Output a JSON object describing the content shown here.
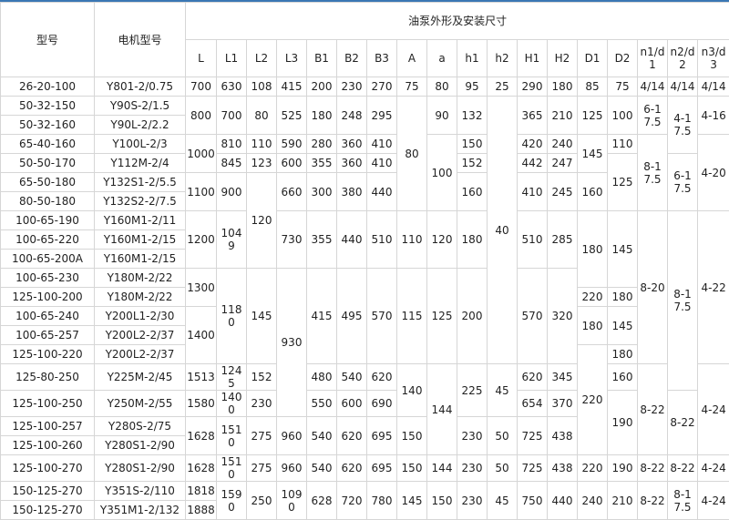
{
  "header": {
    "model_label": "型号",
    "motor_label": "电机型号",
    "group_label": "油泵外形及安装尺寸",
    "dims": [
      "L",
      "L1",
      "L2",
      "L3",
      "B1",
      "B2",
      "B3",
      "A",
      "a",
      "h1",
      "h2",
      "H1",
      "H2",
      "D1",
      "D2",
      "n1/d1",
      "n2/d2",
      "n3/d3"
    ]
  },
  "models": [
    "26-20-100",
    "50-32-150",
    "50-32-160",
    "65-40-160",
    "50-50-170",
    "65-50-180",
    "80-50-180",
    "100-65-190",
    "100-65-220",
    "100-65-200A",
    "100-65-230",
    "125-100-200",
    "100-65-240",
    "100-65-257",
    "125-100-220",
    "125-80-250",
    "125-100-250",
    "125-100-257",
    "125-100-260",
    "125-100-270",
    "150-125-270",
    "150-125-270"
  ],
  "motors": [
    "Y801-2/0.75",
    "Y90S-2/1.5",
    "Y90L-2/2.2",
    "Y100L-2/3",
    "Y112M-2/4",
    "Y132S1-2/5.5",
    "Y132S2-2/7.5",
    "Y160M1-2/11",
    "Y160M1-2/15",
    "Y160M1-2/15",
    "Y180M-2/22",
    "Y180M-2/22",
    "Y200L1-2/30",
    "Y200L2-2/37",
    "Y200L2-2/37",
    "Y225M-2/45",
    "Y250M-2/55",
    "Y280S-2/75",
    "Y280S1-2/90",
    "Y280S1-2/90",
    "Y351S-2/110",
    "Y351M1-2/132"
  ],
  "dim_columns": [
    [
      [
        "700",
        1
      ],
      [
        "800",
        2
      ],
      [
        "1000",
        2
      ],
      [
        "1100",
        2
      ],
      [
        "1200",
        3
      ],
      [
        "1300",
        2
      ],
      [
        "1400",
        3
      ],
      [
        "1513",
        1
      ],
      [
        "1580",
        1
      ],
      [
        "1628",
        2
      ],
      [
        "1628",
        1
      ],
      [
        "1818",
        1
      ],
      [
        "1888",
        1
      ]
    ],
    [
      [
        "630",
        1
      ],
      [
        "700",
        2
      ],
      [
        "810",
        1
      ],
      [
        "845",
        1
      ],
      [
        "900",
        2
      ],
      [
        "1049",
        3
      ],
      [
        "1180",
        5
      ],
      [
        "1245",
        1
      ],
      [
        "1400",
        1
      ],
      [
        "1510",
        2
      ],
      [
        "1510",
        1
      ],
      [
        "1590",
        2
      ]
    ],
    [
      [
        "108",
        1
      ],
      [
        "80",
        2
      ],
      [
        "110",
        1
      ],
      [
        "123",
        1
      ],
      [
        "120",
        5
      ],
      [
        "145",
        5
      ],
      [
        "152",
        1
      ],
      [
        "230",
        1
      ],
      [
        "275",
        2
      ],
      [
        "275",
        1
      ],
      [
        "250",
        2
      ]
    ],
    [
      [
        "415",
        1
      ],
      [
        "525",
        2
      ],
      [
        "590",
        1
      ],
      [
        "600",
        1
      ],
      [
        "660",
        2
      ],
      [
        "730",
        3
      ],
      [
        "930",
        7
      ],
      [
        "960",
        2
      ],
      [
        "960",
        1
      ],
      [
        "1090",
        2
      ]
    ],
    [
      [
        "200",
        1
      ],
      [
        "180",
        2
      ],
      [
        "280",
        1
      ],
      [
        "355",
        1
      ],
      [
        "300",
        2
      ],
      [
        "355",
        3
      ],
      [
        "415",
        5
      ],
      [
        "480",
        1
      ],
      [
        "550",
        1
      ],
      [
        "540",
        2
      ],
      [
        "540",
        1
      ],
      [
        "628",
        2
      ]
    ],
    [
      [
        "230",
        1
      ],
      [
        "248",
        2
      ],
      [
        "360",
        1
      ],
      [
        "360",
        1
      ],
      [
        "380",
        2
      ],
      [
        "440",
        3
      ],
      [
        "495",
        5
      ],
      [
        "540",
        1
      ],
      [
        "600",
        1
      ],
      [
        "620",
        2
      ],
      [
        "620",
        1
      ],
      [
        "720",
        2
      ]
    ],
    [
      [
        "270",
        1
      ],
      [
        "295",
        2
      ],
      [
        "410",
        1
      ],
      [
        "410",
        1
      ],
      [
        "440",
        2
      ],
      [
        "510",
        3
      ],
      [
        "570",
        5
      ],
      [
        "620",
        1
      ],
      [
        "690",
        1
      ],
      [
        "695",
        2
      ],
      [
        "695",
        1
      ],
      [
        "780",
        2
      ]
    ],
    [
      [
        "75",
        1
      ],
      [
        "80",
        6
      ],
      [
        "110",
        3
      ],
      [
        "115",
        5
      ],
      [
        "140",
        2
      ],
      [
        "150",
        2
      ],
      [
        "150",
        1
      ],
      [
        "145",
        2
      ]
    ],
    [
      [
        "80",
        1
      ],
      [
        "90",
        2
      ],
      [
        "100",
        4
      ],
      [
        "120",
        3
      ],
      [
        "125",
        5
      ],
      [
        "144",
        4
      ],
      [
        "144",
        1
      ],
      [
        "150",
        2
      ]
    ],
    [
      [
        "95",
        1
      ],
      [
        "132",
        2
      ],
      [
        "150",
        1
      ],
      [
        "152",
        1
      ],
      [
        "160",
        2
      ],
      [
        "180",
        3
      ],
      [
        "200",
        5
      ],
      [
        "225",
        2
      ],
      [
        "230",
        2
      ],
      [
        "230",
        1
      ],
      [
        "230",
        2
      ]
    ],
    [
      [
        "25",
        1
      ],
      [
        "40",
        14
      ],
      [
        "45",
        2
      ],
      [
        "50",
        2
      ],
      [
        "50",
        1
      ],
      [
        "45",
        2
      ]
    ],
    [
      [
        "290",
        1
      ],
      [
        "365",
        2
      ],
      [
        "420",
        1
      ],
      [
        "442",
        1
      ],
      [
        "410",
        2
      ],
      [
        "510",
        3
      ],
      [
        "570",
        5
      ],
      [
        "620",
        1
      ],
      [
        "654",
        1
      ],
      [
        "725",
        2
      ],
      [
        "725",
        1
      ],
      [
        "750",
        2
      ]
    ],
    [
      [
        "180",
        1
      ],
      [
        "210",
        2
      ],
      [
        "240",
        1
      ],
      [
        "247",
        1
      ],
      [
        "245",
        2
      ],
      [
        "285",
        3
      ],
      [
        "320",
        5
      ],
      [
        "345",
        1
      ],
      [
        "370",
        1
      ],
      [
        "438",
        2
      ],
      [
        "438",
        1
      ],
      [
        "440",
        2
      ]
    ],
    [
      [
        "85",
        1
      ],
      [
        "125",
        2
      ],
      [
        "145",
        2
      ],
      [
        "160",
        2
      ],
      [
        "180",
        4
      ],
      [
        "220",
        1
      ],
      [
        "180",
        2
      ],
      [
        "220",
        5
      ],
      [
        "220",
        1
      ],
      [
        "240",
        2
      ]
    ],
    [
      [
        "75",
        1
      ],
      [
        "100",
        2
      ],
      [
        "110",
        1
      ],
      [
        "125",
        3
      ],
      [
        "145",
        4
      ],
      [
        "180",
        1
      ],
      [
        "145",
        2
      ],
      [
        "180",
        1
      ],
      [
        "160",
        1
      ],
      [
        "190",
        3
      ],
      [
        "190",
        1
      ],
      [
        "210",
        2
      ]
    ],
    [
      [
        "4/14",
        1
      ],
      [
        "6-17.5",
        2
      ],
      [
        "8-17.5",
        4
      ],
      [
        "8-20",
        8
      ],
      [
        "8-22",
        4
      ],
      [
        "8-22",
        1
      ],
      [
        "8-22",
        2
      ]
    ],
    [
      [
        "4/14",
        1
      ],
      [
        "4-17.5",
        3
      ],
      [
        "6-17.5",
        3
      ],
      [
        "8-17.5",
        9
      ],
      [
        "8-22",
        3
      ],
      [
        "8-22",
        1
      ],
      [
        "8-17.5",
        2
      ]
    ],
    [
      [
        "4/14",
        1
      ],
      [
        "4-16",
        2
      ],
      [
        "4-20",
        4
      ],
      [
        "4-22",
        8
      ],
      [
        "4-24",
        4
      ],
      [
        "4-24",
        1
      ],
      [
        "4-24",
        2
      ]
    ]
  ],
  "colors": {
    "top_bar": "#3a77b4",
    "grid": "#d6d6d6"
  }
}
